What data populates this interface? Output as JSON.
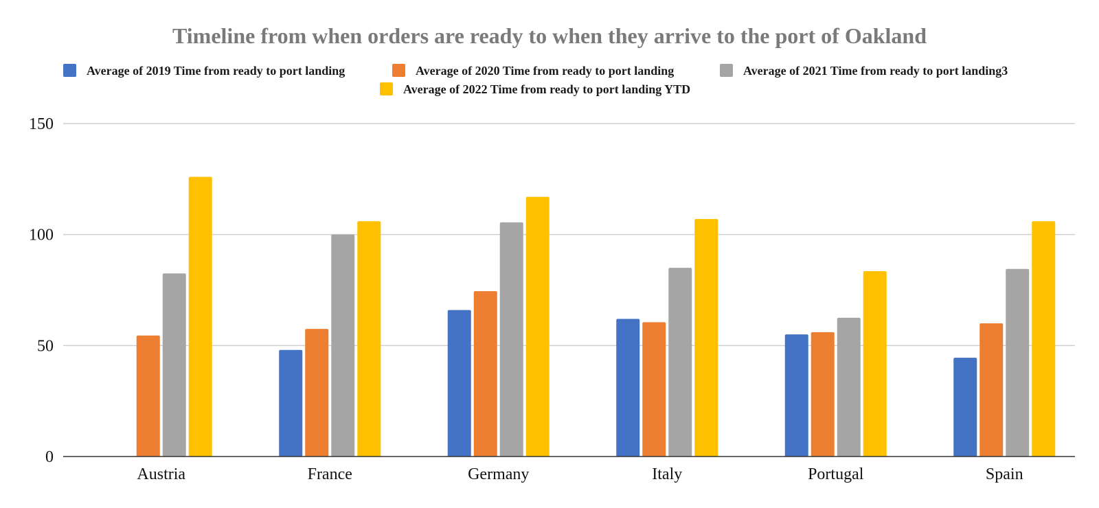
{
  "chart_data": {
    "type": "bar",
    "title": "Timeline from when orders are ready to when they arrive to the port of Oakland",
    "xlabel": "",
    "ylabel": "",
    "categories": [
      "Austria",
      "France",
      "Germany",
      "Italy",
      "Portugal",
      "Spain"
    ],
    "series": [
      {
        "name": "Average of 2019 Time from ready to port landing",
        "color": "#4472c4",
        "values": [
          null,
          48,
          66,
          62,
          55,
          44.5
        ]
      },
      {
        "name": "Average of 2020 Time from ready to port landing",
        "color": "#ed7d31",
        "values": [
          54.5,
          57.5,
          74.5,
          60.5,
          56,
          60
        ]
      },
      {
        "name": "Average of 2021 Time from ready to port landing3",
        "color": "#a5a5a5",
        "values": [
          82.5,
          100,
          105.5,
          85,
          62.5,
          84.5
        ]
      },
      {
        "name": "Average of 2022 Time from ready to port landing YTD",
        "color": "#ffc000",
        "values": [
          126,
          106,
          117,
          107,
          83.5,
          106
        ]
      }
    ],
    "ylim": [
      0,
      150
    ],
    "yticks": [
      0,
      50,
      100,
      150
    ],
    "grid": true,
    "legend_position": "top"
  }
}
